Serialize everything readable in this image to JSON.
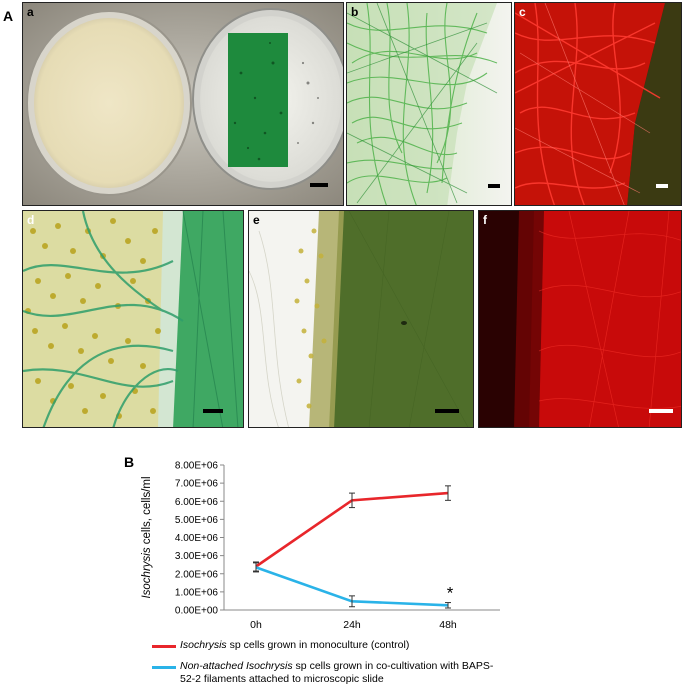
{
  "section_labels": {
    "A": "A",
    "B": "B"
  },
  "panels": {
    "a": {
      "label": "a"
    },
    "b": {
      "label": "b"
    },
    "c": {
      "label": "c"
    },
    "d": {
      "label": "d"
    },
    "e": {
      "label": "e"
    },
    "f": {
      "label": "f"
    }
  },
  "colors": {
    "control": "#e8262b",
    "cocultivation": "#2ab3e8",
    "fluorescence": "#e00000",
    "filament_green": "#1f8a3a"
  },
  "chart_data": {
    "type": "line",
    "categories": [
      "0h",
      "24h",
      "48h"
    ],
    "ylabel_italic": "Isochrysis",
    "ylabel_rest": " cells, cells/ml",
    "y_ticks": [
      "0.00E+00",
      "1.00E+06",
      "2.00E+06",
      "3.00E+06",
      "4.00E+06",
      "5.00E+06",
      "6.00E+06",
      "7.00E+06",
      "8.00E+06"
    ],
    "ylim": [
      0,
      8000000
    ],
    "series": [
      {
        "key": "control",
        "values": [
          2400000,
          6050000,
          6450000
        ],
        "errors": [
          250000,
          400000,
          400000
        ]
      },
      {
        "key": "cocultivation",
        "values": [
          2350000,
          480000,
          260000
        ],
        "errors": [
          250000,
          300000,
          150000
        ]
      }
    ],
    "annotation": {
      "text": "*",
      "category": "48h",
      "series": "cocultivation"
    }
  },
  "legend": {
    "control": {
      "italic": "Isochrysis",
      "rest": " sp cells grown in monoculture (control)"
    },
    "cocultivation": {
      "italic_line1": "Non-attached Isochrysis",
      "rest_line1": " sp cells grown in co-cultivation with BAPS-",
      "line2": "52-2 filaments attached to microscopic slide"
    }
  }
}
